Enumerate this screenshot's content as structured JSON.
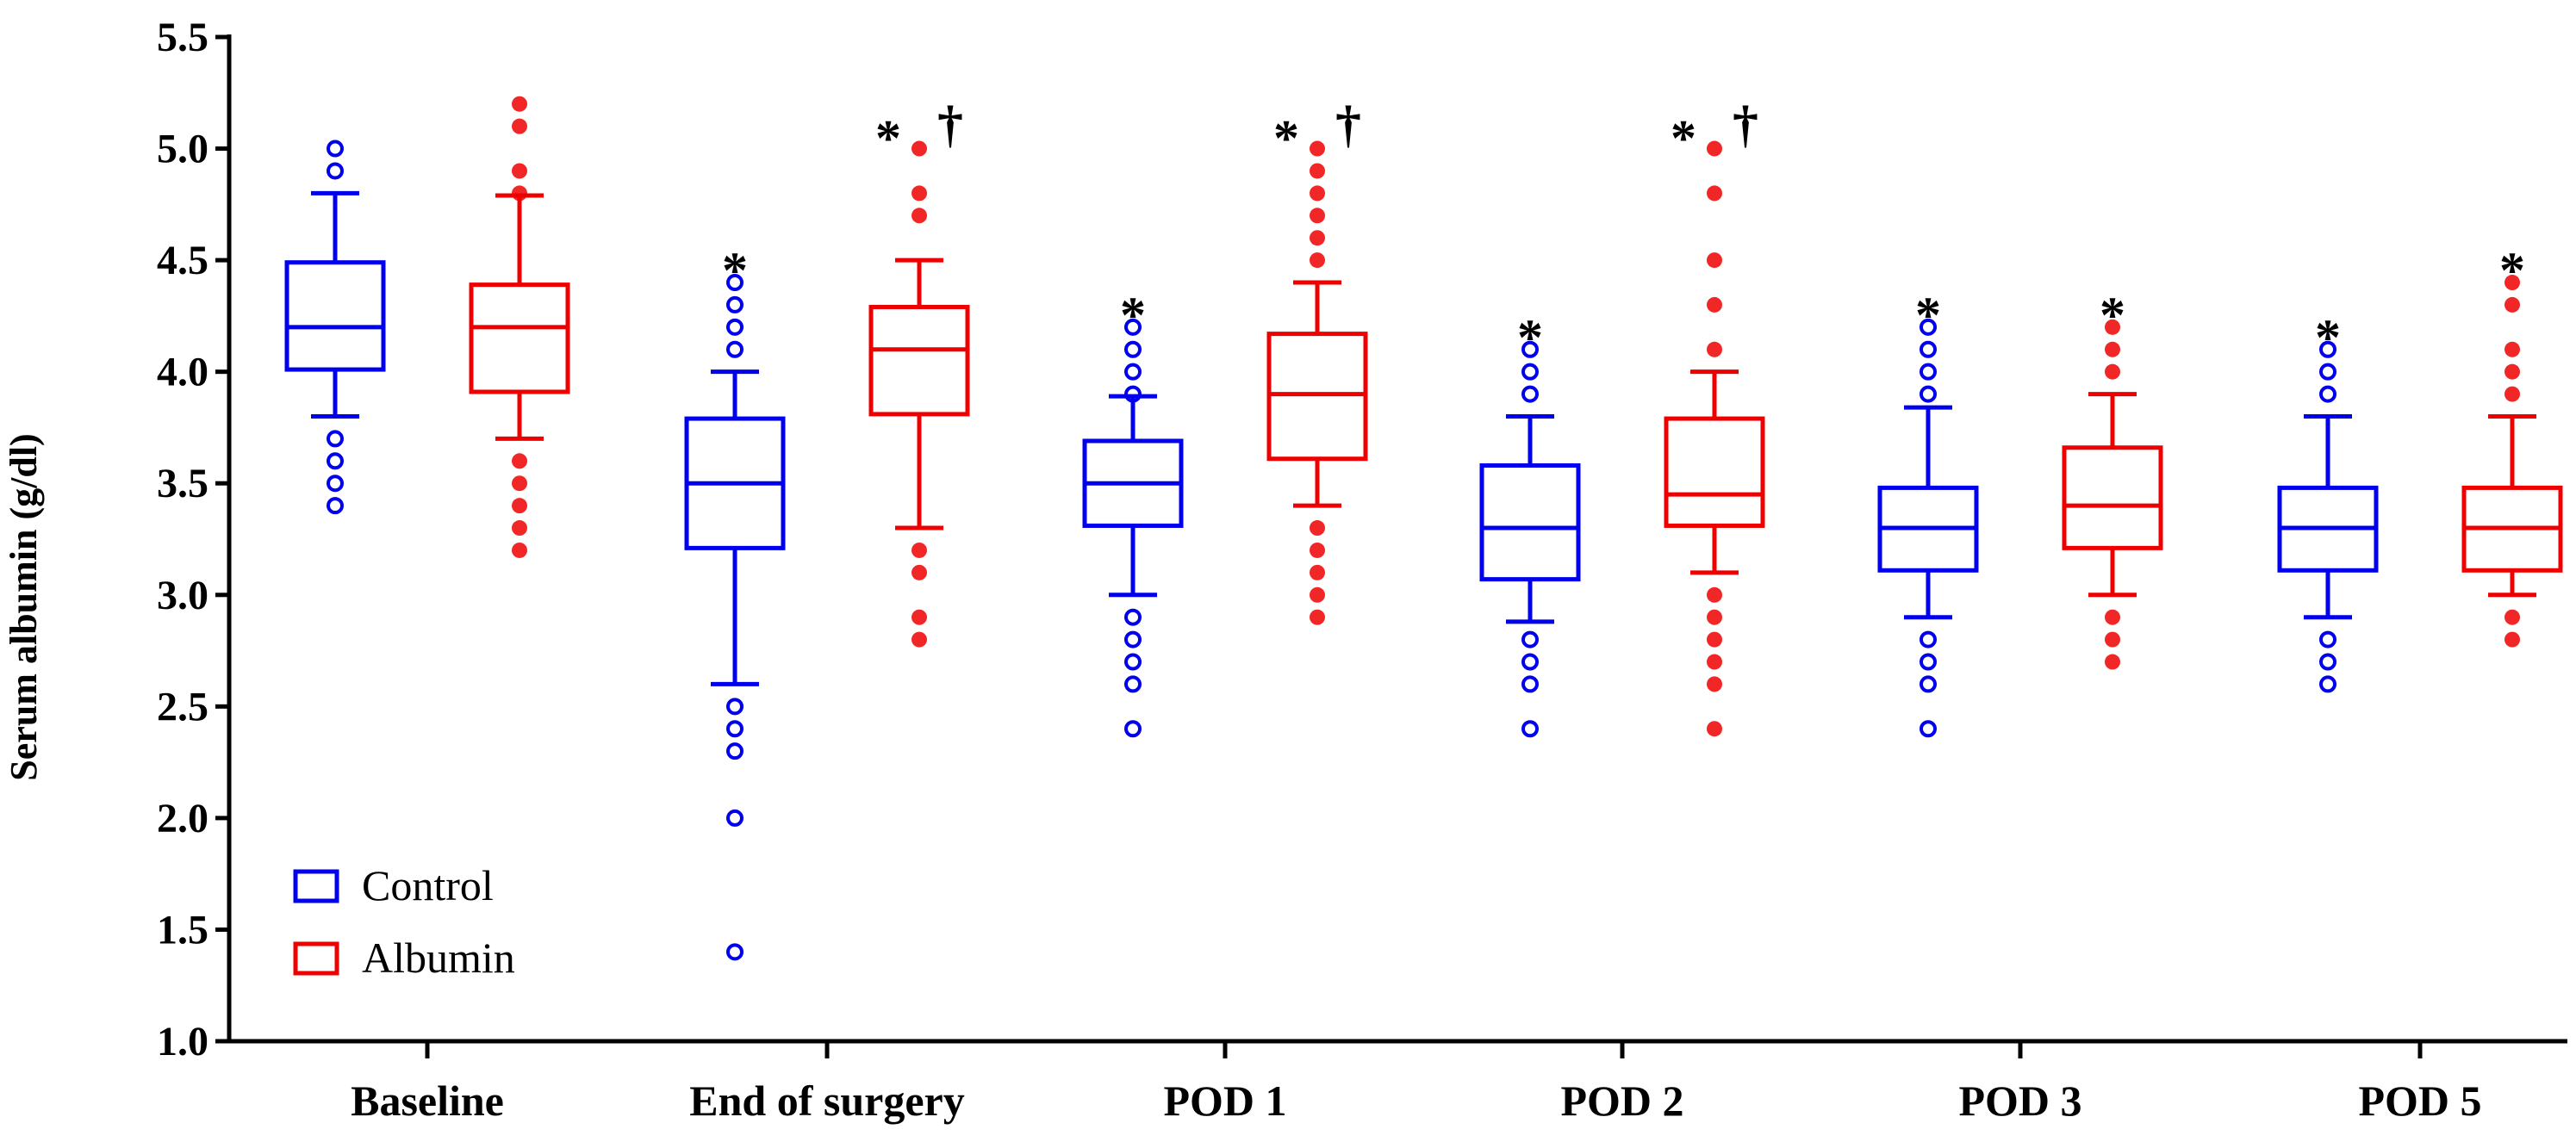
{
  "chart_data": {
    "type": "boxplot",
    "title": "",
    "xlabel": "",
    "ylabel": "Serum albumin (g/dl)",
    "ylim": [
      1.0,
      5.5
    ],
    "y_ticks": [
      "1.0",
      "1.5",
      "2.0",
      "2.5",
      "3.0",
      "3.5",
      "4.0",
      "4.5",
      "5.0",
      "5.5"
    ],
    "categories": [
      "Baseline",
      "End of surgery",
      "POD 1",
      "POD 2",
      "POD 3",
      "POD 5"
    ],
    "legend_position": "bottom-left",
    "series": [
      {
        "name": "Control",
        "color": "#0000ee",
        "marker": "open-circle",
        "boxes": [
          {
            "whisker_low": 3.8,
            "q1": 4.01,
            "median": 4.2,
            "q3": 4.49,
            "whisker_high": 4.8,
            "outliers": [
              3.4,
              3.5,
              3.6,
              3.7,
              4.9,
              5.0
            ],
            "sig": []
          },
          {
            "whisker_low": 2.6,
            "q1": 3.21,
            "median": 3.5,
            "q3": 3.79,
            "whisker_high": 4.0,
            "outliers": [
              1.4,
              2.0,
              2.3,
              2.4,
              2.5,
              4.1,
              4.2,
              4.3,
              4.4
            ],
            "sig": [
              "*"
            ]
          },
          {
            "whisker_low": 3.0,
            "q1": 3.31,
            "median": 3.5,
            "q3": 3.69,
            "whisker_high": 3.89,
            "outliers": [
              2.4,
              2.6,
              2.7,
              2.8,
              2.9,
              3.9,
              4.0,
              4.1,
              4.2
            ],
            "sig": [
              "*"
            ]
          },
          {
            "whisker_low": 2.88,
            "q1": 3.07,
            "median": 3.3,
            "q3": 3.58,
            "whisker_high": 3.8,
            "outliers": [
              2.4,
              2.6,
              2.7,
              2.8,
              3.9,
              4.0,
              4.1
            ],
            "sig": [
              "*"
            ]
          },
          {
            "whisker_low": 2.9,
            "q1": 3.11,
            "median": 3.3,
            "q3": 3.48,
            "whisker_high": 3.84,
            "outliers": [
              2.4,
              2.6,
              2.7,
              2.8,
              3.9,
              4.0,
              4.1,
              4.2
            ],
            "sig": [
              "*"
            ]
          },
          {
            "whisker_low": 2.9,
            "q1": 3.11,
            "median": 3.3,
            "q3": 3.48,
            "whisker_high": 3.8,
            "outliers": [
              2.6,
              2.7,
              2.8,
              3.9,
              4.0,
              4.1
            ],
            "sig": [
              "*"
            ]
          }
        ]
      },
      {
        "name": "Albumin",
        "color": "#ee0000",
        "marker": "filled-circle",
        "boxes": [
          {
            "whisker_low": 3.7,
            "q1": 3.91,
            "median": 4.2,
            "q3": 4.39,
            "whisker_high": 4.79,
            "outliers": [
              3.2,
              3.3,
              3.4,
              3.5,
              3.6,
              4.8,
              4.9,
              5.1,
              5.2
            ],
            "sig": []
          },
          {
            "whisker_low": 3.3,
            "q1": 3.81,
            "median": 4.1,
            "q3": 4.29,
            "whisker_high": 4.5,
            "outliers": [
              2.8,
              2.9,
              3.1,
              3.2,
              4.7,
              4.8,
              5.0
            ],
            "sig": [
              "*",
              "†"
            ]
          },
          {
            "whisker_low": 3.4,
            "q1": 3.61,
            "median": 3.9,
            "q3": 4.17,
            "whisker_high": 4.4,
            "outliers": [
              2.9,
              3.0,
              3.1,
              3.2,
              3.3,
              4.5,
              4.6,
              4.7,
              4.8,
              4.9,
              5.0
            ],
            "sig": [
              "*",
              "†"
            ]
          },
          {
            "whisker_low": 3.1,
            "q1": 3.31,
            "median": 3.45,
            "q3": 3.79,
            "whisker_high": 4.0,
            "outliers": [
              2.4,
              2.6,
              2.7,
              2.8,
              2.9,
              3.0,
              4.1,
              4.3,
              4.5,
              4.8,
              5.0
            ],
            "sig": [
              "*",
              "†"
            ]
          },
          {
            "whisker_low": 3.0,
            "q1": 3.21,
            "median": 3.4,
            "q3": 3.66,
            "whisker_high": 3.9,
            "outliers": [
              2.7,
              2.8,
              2.9,
              4.0,
              4.1,
              4.2
            ],
            "sig": [
              "*"
            ]
          },
          {
            "whisker_low": 3.0,
            "q1": 3.11,
            "median": 3.3,
            "q3": 3.48,
            "whisker_high": 3.8,
            "outliers": [
              2.8,
              2.9,
              3.9,
              4.0,
              4.1,
              4.3,
              4.4
            ],
            "sig": [
              "*"
            ]
          }
        ]
      }
    ]
  }
}
